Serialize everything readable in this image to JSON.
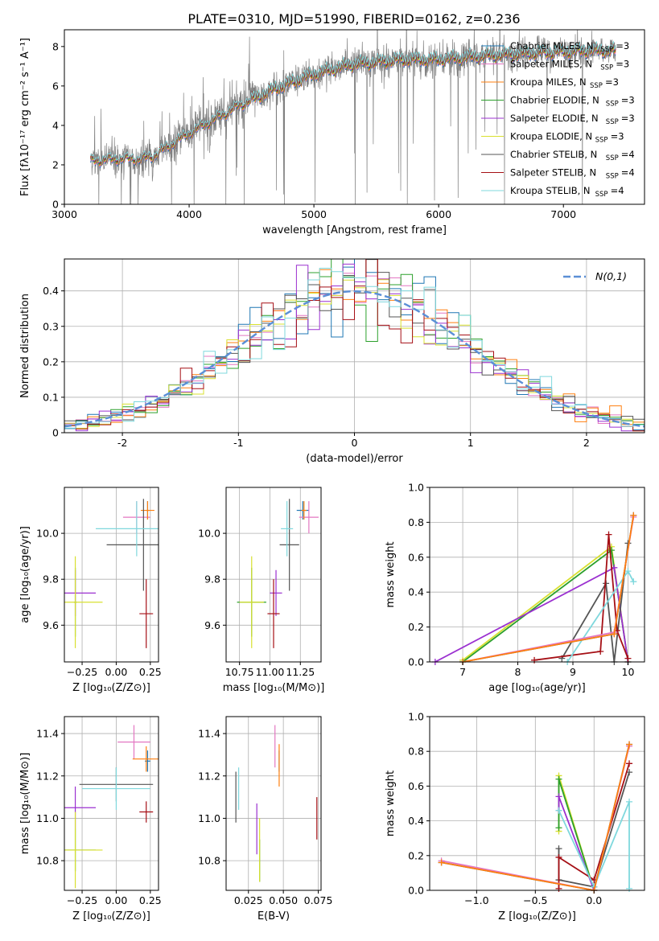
{
  "title": "PLATE=0310, MJD=51990, FIBERID=0162, z=0.236",
  "colors": {
    "data": "#808080",
    "Chabrier MILES": "#1f77b4",
    "Salpeter MILES": "#e377c2",
    "Kroupa MILES": "#ff7f0e",
    "Chabrier ELODIE": "#2ca02c",
    "Salpeter ELODIE": "#9b30d0",
    "Kroupa ELODIE": "#d8e030",
    "Chabrier STELIB": "#555555",
    "Salpeter STELIB": "#a50f15",
    "Kroupa STELIB": "#7fd8dd",
    "normal": "#5b8fd6"
  },
  "chart_data": [
    {
      "id": "spectrum",
      "type": "line",
      "xlabel": "wavelength [Angstrom, rest frame]",
      "ylabel": "Flux [fλ10⁻¹⁷ erg cm⁻² s⁻¹ A⁻¹]",
      "xlim": [
        3000,
        7650
      ],
      "ylim": [
        0,
        8.85
      ],
      "xticks": [
        "3000",
        "4000",
        "5000",
        "6000",
        "7000"
      ],
      "yticks": [
        "0",
        "2",
        "4",
        "6",
        "8"
      ],
      "grid": false,
      "legend_position": "right",
      "legend": [
        {
          "label": "Chabrier MILES, N",
          "sub": "SSP",
          "tail": "=3",
          "color_key": "Chabrier MILES"
        },
        {
          "label": "Salpeter MILES, N",
          "sub": "SSP",
          "tail": "=3",
          "color_key": "Salpeter MILES"
        },
        {
          "label": "Kroupa MILES, N",
          "sub": "SSP",
          "tail": "=3",
          "color_key": "Kroupa MILES"
        },
        {
          "label": "Chabrier ELODIE, N",
          "sub": "SSP",
          "tail": "=3",
          "color_key": "Chabrier ELODIE"
        },
        {
          "label": "Salpeter ELODIE, N",
          "sub": "SSP",
          "tail": "=3",
          "color_key": "Salpeter ELODIE"
        },
        {
          "label": "Kroupa ELODIE, N",
          "sub": "SSP",
          "tail": "=3",
          "color_key": "Kroupa ELODIE"
        },
        {
          "label": "Chabrier STELIB, N",
          "sub": "SSP",
          "tail": "=4",
          "color_key": "Chabrier STELIB"
        },
        {
          "label": "Salpeter STELIB, N",
          "sub": "SSP",
          "tail": "=4",
          "color_key": "Salpeter STELIB"
        },
        {
          "label": "Kroupa STELIB, N",
          "sub": "SSP",
          "tail": "=4",
          "color_key": "Kroupa STELIB"
        }
      ],
      "continuum_knots": [
        [
          3210,
          2.2
        ],
        [
          3400,
          2.3
        ],
        [
          3600,
          2.3
        ],
        [
          3700,
          2.4
        ],
        [
          3850,
          3.0
        ],
        [
          4000,
          3.6
        ],
        [
          4200,
          4.3
        ],
        [
          4400,
          5.0
        ],
        [
          4700,
          5.9
        ],
        [
          5000,
          6.6
        ],
        [
          5300,
          7.1
        ],
        [
          5700,
          7.35
        ],
        [
          6000,
          7.35
        ],
        [
          6400,
          7.55
        ],
        [
          6800,
          7.7
        ],
        [
          7200,
          7.8
        ],
        [
          7420,
          7.8
        ]
      ],
      "data_range": [
        3210,
        7420
      ],
      "model_range": [
        3210,
        7420
      ]
    },
    {
      "id": "residuals",
      "type": "histogram",
      "xlabel": "(data-model)/error",
      "ylabel": "Normed distribution",
      "xlim": [
        -2.5,
        2.5
      ],
      "ylim": [
        0,
        0.49
      ],
      "xticks": [
        -2,
        -1,
        0,
        1,
        2
      ],
      "yticks": [
        0.0,
        0.1,
        0.2,
        0.3,
        0.4
      ],
      "grid": true,
      "legend": {
        "label": "N(0,1)",
        "position": "top-right"
      },
      "bin_width": 0.1,
      "normal": {
        "mean": 0,
        "sigma": 1
      }
    },
    {
      "id": "age_vs_Z",
      "type": "errorbar",
      "xlabel": "Z [log₁₀(Z/Z⊙)]",
      "ylabel": "age  [log₁₀(age/yr)]",
      "xlim": [
        -0.38,
        0.31
      ],
      "ylim": [
        9.44,
        10.2
      ],
      "xticks": [
        -0.25,
        0.0,
        0.25
      ],
      "xtick_labels": [
        "−0.25",
        "0.00",
        "0.25"
      ],
      "yticks": [
        9.6,
        9.8,
        10.0
      ],
      "yticklabels": [
        "9.6",
        "9.8",
        "10.0"
      ],
      "grid": true,
      "points": [
        {
          "key": "Chabrier MILES",
          "x": 0.23,
          "xerr": 0.01,
          "y": 10.1,
          "yerr": 0.04
        },
        {
          "key": "Salpeter MILES",
          "x": 0.15,
          "xerr": 0.1,
          "y": 10.07,
          "yerr": 0.07
        },
        {
          "key": "Kroupa MILES",
          "x": 0.23,
          "xerr": 0.05,
          "y": 10.1,
          "yerr": 0.04
        },
        {
          "key": "Chabrier ELODIE",
          "x": -0.3,
          "xerr": 0.01,
          "y": 9.7,
          "yerr": 0.15
        },
        {
          "key": "Salpeter ELODIE",
          "x": -0.3,
          "xerr": 0.15,
          "y": 9.74,
          "yerr": 0.1
        },
        {
          "key": "Kroupa ELODIE",
          "x": -0.3,
          "xerr": 0.2,
          "y": 9.7,
          "yerr": 0.2
        },
        {
          "key": "Chabrier STELIB",
          "x": 0.2,
          "xerr": 0.27,
          "y": 9.95,
          "yerr": 0.2
        },
        {
          "key": "Salpeter STELIB",
          "x": 0.22,
          "xerr": 0.05,
          "y": 9.65,
          "yerr": 0.15
        },
        {
          "key": "Kroupa STELIB",
          "x": 0.15,
          "xerr": 0.3,
          "y": 10.02,
          "yerr": 0.12
        }
      ]
    },
    {
      "id": "age_vs_mass",
      "type": "errorbar",
      "xlabel": "mass [log₁₀(M/M⊙)]",
      "ylabel": "",
      "xlim": [
        10.64,
        11.42
      ],
      "ylim": [
        9.44,
        10.2
      ],
      "xticks": [
        10.75,
        11.0,
        11.25
      ],
      "xtick_labels": [
        "10.75",
        "11.00",
        "11.25"
      ],
      "yticks": [
        9.6,
        9.8,
        10.0
      ],
      "yticklabels": [
        "9.6",
        "9.8",
        "10.0"
      ],
      "grid": true,
      "points": [
        {
          "key": "Chabrier MILES",
          "x": 11.27,
          "xerr": 0.05,
          "y": 10.1,
          "yerr": 0.04
        },
        {
          "key": "Salpeter MILES",
          "x": 11.32,
          "xerr": 0.08,
          "y": 10.07,
          "yerr": 0.07
        },
        {
          "key": "Kroupa MILES",
          "x": 11.28,
          "xerr": 0.02,
          "y": 10.1,
          "yerr": 0.04
        },
        {
          "key": "Chabrier ELODIE",
          "x": 10.85,
          "xerr": 0.12,
          "y": 9.7,
          "yerr": 0.15
        },
        {
          "key": "Salpeter ELODIE",
          "x": 11.05,
          "xerr": 0.05,
          "y": 9.74,
          "yerr": 0.1
        },
        {
          "key": "Kroupa ELODIE",
          "x": 10.85,
          "xerr": 0.1,
          "y": 9.7,
          "yerr": 0.2
        },
        {
          "key": "Chabrier STELIB",
          "x": 11.16,
          "xerr": 0.08,
          "y": 9.95,
          "yerr": 0.2
        },
        {
          "key": "Salpeter STELIB",
          "x": 11.03,
          "xerr": 0.05,
          "y": 9.65,
          "yerr": 0.15
        },
        {
          "key": "Kroupa STELIB",
          "x": 11.14,
          "xerr": 0.05,
          "y": 10.02,
          "yerr": 0.12
        }
      ]
    },
    {
      "id": "massweight_vs_age",
      "type": "line",
      "xlabel": "age  [log₁₀(age/yr)]",
      "ylabel": "mass weight",
      "xlim": [
        6.4,
        10.3
      ],
      "ylim": [
        0,
        1
      ],
      "xticks": [
        7,
        8,
        9,
        10
      ],
      "xtick_labels": [
        "7",
        "8",
        "9",
        "10"
      ],
      "yticks": [
        0.0,
        0.2,
        0.4,
        0.6,
        0.8,
        1.0
      ],
      "yticklabels": [
        "0.0",
        "0.2",
        "0.4",
        "0.6",
        "0.8",
        "1.0"
      ],
      "grid": true,
      "series": [
        {
          "key": "Kroupa ELODIE",
          "x": [
            7.0,
            9.7,
            10.0
          ],
          "y": [
            0.01,
            0.66,
            0.0
          ]
        },
        {
          "key": "Chabrier ELODIE",
          "x": [
            7.0,
            9.7,
            10.0
          ],
          "y": [
            0.0,
            0.64,
            0.0
          ]
        },
        {
          "key": "Salpeter ELODIE",
          "x": [
            6.5,
            9.75,
            10.0
          ],
          "y": [
            0.0,
            0.54,
            0.0
          ]
        },
        {
          "key": "Chabrier STELIB",
          "x": [
            8.8,
            9.6,
            9.75,
            10.0
          ],
          "y": [
            0.02,
            0.45,
            0.0,
            0.68
          ]
        },
        {
          "key": "Salpeter STELIB",
          "x": [
            8.3,
            9.5,
            9.65,
            9.8,
            10.0
          ],
          "y": [
            0.01,
            0.06,
            0.73,
            0.18,
            0.02
          ]
        },
        {
          "key": "Kroupa STELIB",
          "x": [
            8.9,
            10.0,
            10.1
          ],
          "y": [
            0.0,
            0.52,
            0.46
          ]
        },
        {
          "key": "Chabrier MILES",
          "x": [
            7.0,
            9.75,
            10.1
          ],
          "y": [
            0.0,
            0.16,
            0.84
          ]
        },
        {
          "key": "Salpeter MILES",
          "x": [
            7.0,
            9.75,
            10.1
          ],
          "y": [
            0.0,
            0.17,
            0.83
          ]
        },
        {
          "key": "Kroupa MILES",
          "x": [
            7.0,
            9.75,
            10.1
          ],
          "y": [
            0.0,
            0.16,
            0.84
          ]
        }
      ]
    },
    {
      "id": "mass_vs_Z",
      "type": "errorbar",
      "xlabel": "Z [log₁₀(Z/Z⊙)]",
      "ylabel": "mass [log₁₀(M/M⊙)]",
      "xlim": [
        -0.38,
        0.31
      ],
      "ylim": [
        10.66,
        11.48
      ],
      "xticks": [
        -0.25,
        0.0,
        0.25
      ],
      "xtick_labels": [
        "−0.25",
        "0.00",
        "0.25"
      ],
      "yticks": [
        10.8,
        11.0,
        11.2,
        11.4
      ],
      "yticklabels": [
        "10.8",
        "11.0",
        "11.2",
        "11.4"
      ],
      "grid": true,
      "points": [
        {
          "key": "Chabrier MILES",
          "x": 0.23,
          "xerr": 0.02,
          "y": 11.27,
          "yerr": 0.05
        },
        {
          "key": "Salpeter MILES",
          "x": 0.13,
          "xerr": 0.12,
          "y": 11.36,
          "yerr": 0.08
        },
        {
          "key": "Kroupa MILES",
          "x": 0.22,
          "xerr": 0.1,
          "y": 11.28,
          "yerr": 0.06
        },
        {
          "key": "Chabrier ELODIE",
          "x": -0.3,
          "xerr": 0.15,
          "y": 10.85,
          "yerr": 0.1
        },
        {
          "key": "Salpeter ELODIE",
          "x": -0.3,
          "xerr": 0.15,
          "y": 11.05,
          "yerr": 0.1
        },
        {
          "key": "Kroupa ELODIE",
          "x": -0.3,
          "xerr": 0.2,
          "y": 10.85,
          "yerr": 0.18
        },
        {
          "key": "Chabrier STELIB",
          "x": 0.0,
          "xerr": 0.27,
          "y": 11.16,
          "yerr": 0.08
        },
        {
          "key": "Salpeter STELIB",
          "x": 0.22,
          "xerr": 0.05,
          "y": 11.03,
          "yerr": 0.05
        },
        {
          "key": "Kroupa STELIB",
          "x": 0.0,
          "xerr": 0.25,
          "y": 11.14,
          "yerr": 0.1
        }
      ]
    },
    {
      "id": "mass_vs_EBV",
      "type": "errorbar",
      "xlabel": "E(B-V)",
      "ylabel": "",
      "xlim": [
        0.009,
        0.077
      ],
      "ylim": [
        10.66,
        11.48
      ],
      "xticks": [
        0.025,
        0.05,
        0.075
      ],
      "xtick_labels": [
        "0.025",
        "0.050",
        "0.075"
      ],
      "yticks": [
        10.8,
        11.0,
        11.2,
        11.4
      ],
      "yticklabels": [
        "10.8",
        "11.0",
        "11.2",
        "11.4"
      ],
      "grid": true,
      "points": [
        {
          "key": "Chabrier MILES",
          "x": 0.047,
          "xerr": 0.0,
          "y": 11.27,
          "yerr": 0.05
        },
        {
          "key": "Salpeter MILES",
          "x": 0.044,
          "xerr": 0.0,
          "y": 11.34,
          "yerr": 0.1
        },
        {
          "key": "Kroupa MILES",
          "x": 0.047,
          "xerr": 0.0,
          "y": 11.25,
          "yerr": 0.1
        },
        {
          "key": "Chabrier ELODIE",
          "x": 0.033,
          "xerr": 0.0,
          "y": 10.8,
          "yerr": 0.1
        },
        {
          "key": "Salpeter ELODIE",
          "x": 0.031,
          "xerr": 0.0,
          "y": 10.95,
          "yerr": 0.12
        },
        {
          "key": "Kroupa ELODIE",
          "x": 0.033,
          "xerr": 0.0,
          "y": 10.85,
          "yerr": 0.15
        },
        {
          "key": "Chabrier STELIB",
          "x": 0.016,
          "xerr": 0.0,
          "y": 11.1,
          "yerr": 0.12
        },
        {
          "key": "Salpeter STELIB",
          "x": 0.074,
          "xerr": 0.0,
          "y": 11.0,
          "yerr": 0.1
        },
        {
          "key": "Kroupa STELIB",
          "x": 0.018,
          "xerr": 0.0,
          "y": 11.14,
          "yerr": 0.1
        }
      ]
    },
    {
      "id": "massweight_vs_Z",
      "type": "line",
      "xlabel": "Z [log₁₀(Z/Z⊙)]",
      "ylabel": "mass weight",
      "xlim": [
        -1.4,
        0.43
      ],
      "ylim": [
        0,
        1
      ],
      "xticks": [
        -1.0,
        -0.5,
        0.0
      ],
      "xtick_labels": [
        "−1.0",
        "−0.5",
        "0.0"
      ],
      "yticks": [
        0.0,
        0.2,
        0.4,
        0.6,
        0.8,
        1.0
      ],
      "yticklabels": [
        "0.0",
        "0.2",
        "0.4",
        "0.6",
        "0.8",
        "1.0"
      ],
      "grid": true,
      "series": [
        {
          "key": "Kroupa ELODIE",
          "x": [
            -0.3,
            -0.3,
            0.0
          ],
          "y": [
            0.34,
            0.66,
            0.0
          ]
        },
        {
          "key": "Chabrier ELODIE",
          "x": [
            -0.3,
            -0.3,
            0.0
          ],
          "y": [
            0.36,
            0.64,
            0.0
          ]
        },
        {
          "key": "Salpeter ELODIE",
          "x": [
            -0.3,
            -0.3,
            0.0
          ],
          "y": [
            0.46,
            0.54,
            0.0
          ]
        },
        {
          "key": "Chabrier STELIB",
          "x": [
            -0.3,
            -0.3,
            0.0,
            0.3
          ],
          "y": [
            0.24,
            0.06,
            0.02,
            0.68
          ]
        },
        {
          "key": "Salpeter STELIB",
          "x": [
            -0.3,
            -0.3,
            0.0,
            0.3
          ],
          "y": [
            0.01,
            0.19,
            0.06,
            0.73
          ]
        },
        {
          "key": "Kroupa STELIB",
          "x": [
            -0.3,
            0.0,
            0.3,
            0.3
          ],
          "y": [
            0.46,
            0.02,
            0.51,
            0.01
          ]
        },
        {
          "key": "Chabrier MILES",
          "x": [
            -1.3,
            0.0,
            0.3
          ],
          "y": [
            0.16,
            0.0,
            0.84
          ]
        },
        {
          "key": "Salpeter MILES",
          "x": [
            -1.3,
            0.0,
            0.3
          ],
          "y": [
            0.17,
            0.0,
            0.83
          ]
        },
        {
          "key": "Kroupa MILES",
          "x": [
            -1.3,
            0.0,
            0.3
          ],
          "y": [
            0.16,
            0.0,
            0.84
          ]
        }
      ]
    }
  ]
}
